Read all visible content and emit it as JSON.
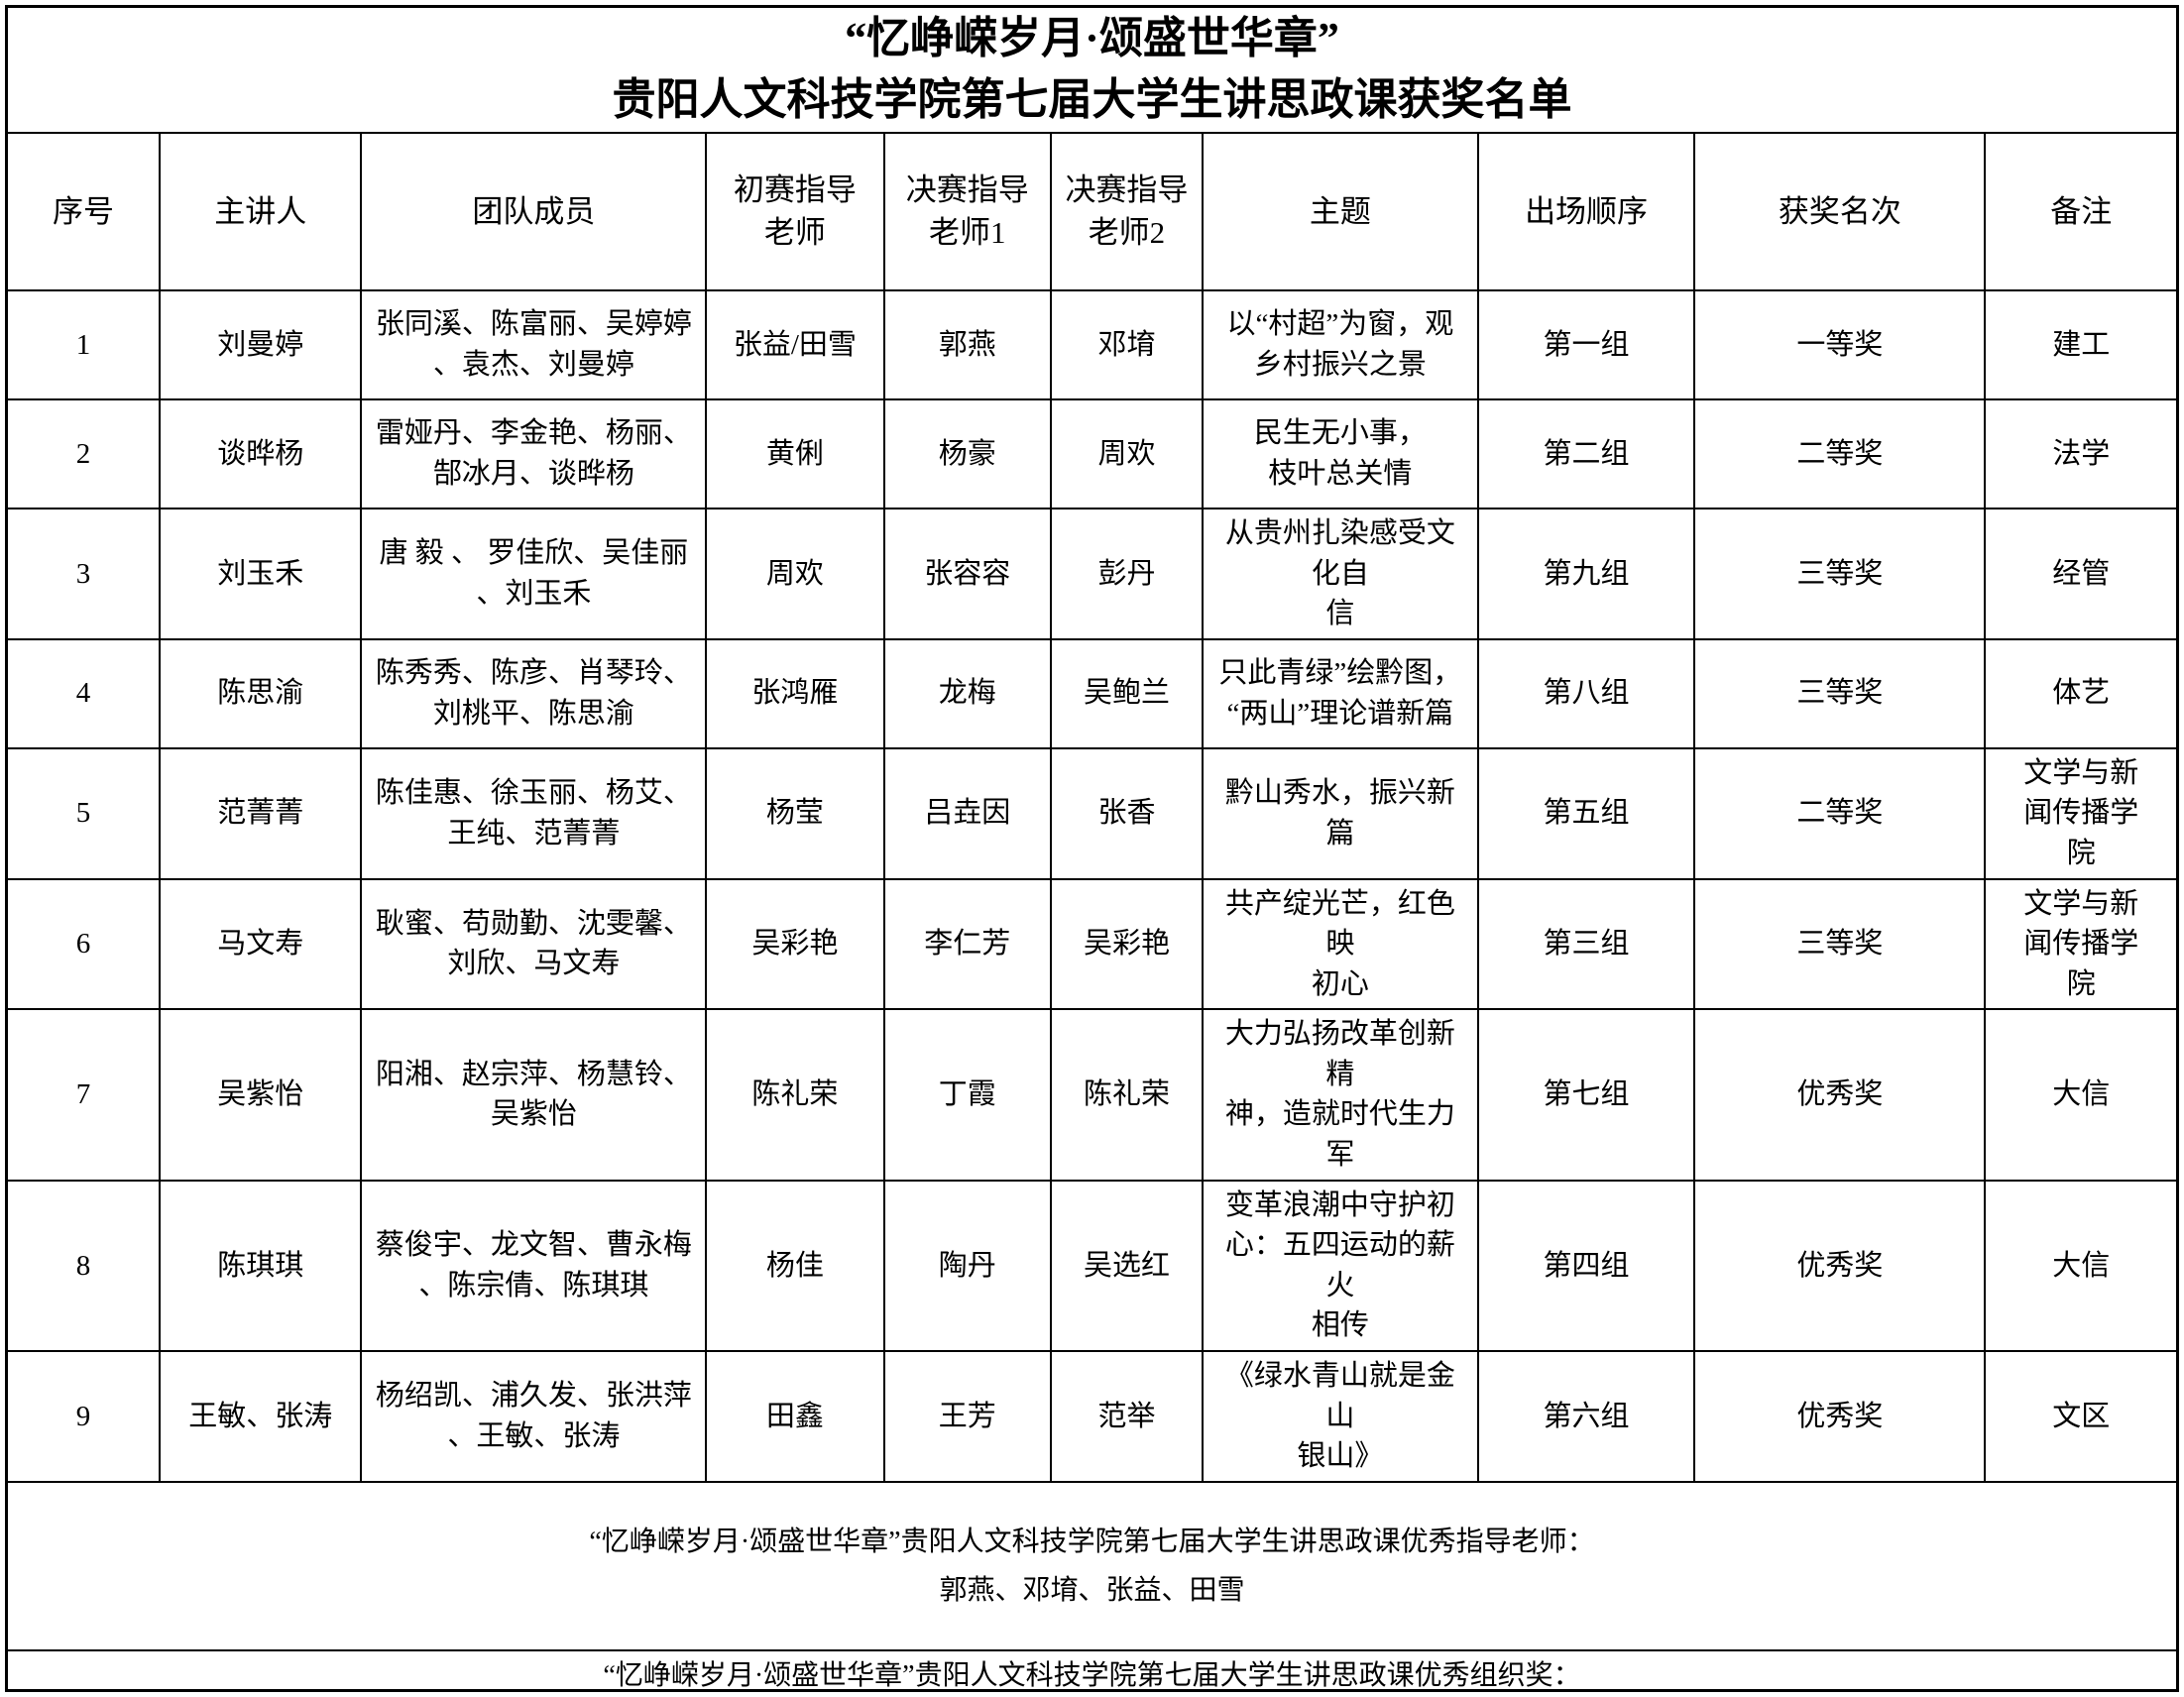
{
  "title": {
    "line1": "“忆峥嵘岁月·颂盛世华章”",
    "line2": "贵阳人文科技学院第七届大学生讲思政课获奖名单"
  },
  "table": {
    "headers": [
      "序号",
      "主讲人",
      "团队成员",
      "初赛指导\n老师",
      "决赛指导\n老师1",
      "决赛指导\n老师2",
      "主题",
      "出场顺序",
      "获奖名次",
      "备注"
    ],
    "rows": [
      [
        "1",
        "刘曼婷",
        "张同溪、陈富丽、吴婷婷\n、袁杰、刘曼婷",
        "张益/田雪",
        "郭燕",
        "邓堉",
        "以“村超”为窗，观\n乡村振兴之景",
        "第一组",
        "一等奖",
        "建工"
      ],
      [
        "2",
        "谈晔杨",
        "雷娅丹、李金艳、杨丽、\n郜冰月、谈晔杨",
        "黄俐",
        "杨豪",
        "周欢",
        "民生无小事，\n枝叶总关情",
        "第二组",
        "二等奖",
        "法学"
      ],
      [
        "3",
        "刘玉禾",
        "唐 毅 、 罗佳欣、吴佳丽\n、刘玉禾",
        "周欢",
        "张容容",
        "彭丹",
        "从贵州扎染感受文化自\n信",
        "第九组",
        "三等奖",
        "经管"
      ],
      [
        "4",
        "陈思渝",
        "陈秀秀、陈彦、肖琴玲、\n刘桃平、陈思渝",
        "张鸿雁",
        "龙梅",
        "吴鲍兰",
        "只此青绿”绘黔图，\n“两山”理论谱新篇",
        "第八组",
        "三等奖",
        "体艺"
      ],
      [
        "5",
        "范菁菁",
        "陈佳惠、徐玉丽、杨艾、\n王纯、范菁菁",
        "杨莹",
        "吕垚因",
        "张香",
        "黔山秀水，振兴新篇",
        "第五组",
        "二等奖",
        "文学与新\n闻传播学\n院"
      ],
      [
        "6",
        "马文寿",
        "耿蜜、苟勋勤、沈雯馨、\n刘欣、马文寿",
        "吴彩艳",
        "李仁芳",
        "吴彩艳",
        "共产绽光芒，红色映\n初心",
        "第三组",
        "三等奖",
        "文学与新\n闻传播学\n院"
      ],
      [
        "7",
        "吴紫怡",
        "阳湘、赵宗萍、杨慧铃、\n吴紫怡",
        "陈礼荣",
        "丁霞",
        "陈礼荣",
        "大力弘扬改革创新精\n神，造就时代生力军",
        "第七组",
        "优秀奖",
        "大信"
      ],
      [
        "8",
        "陈琪琪",
        "蔡俊宇、龙文智、曹永梅\n、陈宗倩、陈琪琪",
        "杨佳",
        "陶丹",
        "吴选红",
        "变革浪潮中守护初\n心：五四运动的薪火\n相传",
        "第四组",
        "优秀奖",
        "大信"
      ],
      [
        "9",
        "王敏、张涛",
        "杨绍凯、浦久发、张洪萍\n、王敏、张涛",
        "田鑫",
        "王芳",
        "范举",
        "《绿水青山就是金山\n银山》",
        "第六组",
        "优秀奖",
        "文区"
      ]
    ]
  },
  "footers": [
    {
      "text": "“忆峥嵘岁月·颂盛世华章”贵阳人文科技学院第七届大学生讲思政课优秀指导老师：\n郭燕、邓堉、张益、田雪"
    },
    {
      "text": "“忆峥嵘岁月·颂盛世华章”贵阳人文科技学院第七届大学生讲思政课优秀组织奖：\n建筑与工程学院"
    }
  ]
}
